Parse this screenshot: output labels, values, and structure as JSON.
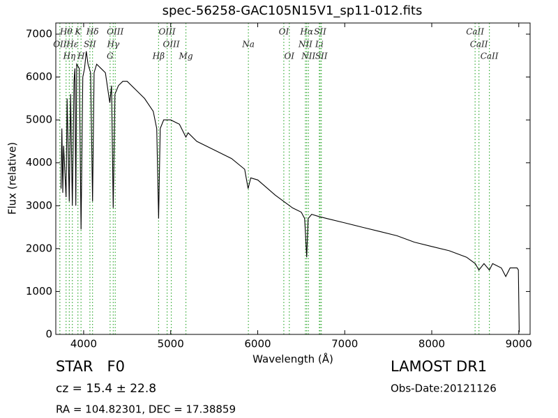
{
  "chart_data": {
    "type": "line",
    "title": "spec-56258-GAC105N15V1_sp11-012.fits",
    "x_label": "Wavelength (Å)",
    "y_label": "Flux (relative)",
    "xlim": [
      3680,
      9130
    ],
    "ylim": [
      0,
      7260
    ],
    "xticks": [
      4000,
      5000,
      6000,
      7000,
      8000,
      9000
    ],
    "yticks": [
      0,
      1000,
      2000,
      3000,
      4000,
      5000,
      6000,
      7000
    ],
    "series": [
      {
        "color": "#000000",
        "x": [
          3740,
          3750,
          3760,
          3770,
          3798,
          3810,
          3835,
          3850,
          3870,
          3889,
          3900,
          3910,
          3920,
          3950,
          3970,
          3990,
          4010,
          4030,
          4050,
          4080,
          4102,
          4120,
          4150,
          4200,
          4250,
          4300,
          4320,
          4340,
          4360,
          4400,
          4450,
          4500,
          4600,
          4700,
          4800,
          4840,
          4861,
          4880,
          4920,
          5000,
          5100,
          5175,
          5200,
          5300,
          5500,
          5700,
          5850,
          5890,
          5920,
          6000,
          6200,
          6400,
          6500,
          6540,
          6563,
          6580,
          6620,
          6700,
          6800,
          7000,
          7200,
          7400,
          7600,
          7800,
          8000,
          8200,
          8400,
          8500,
          8542,
          8600,
          8662,
          8700,
          8800,
          8850,
          8900,
          8980,
          8995,
          9005
        ],
        "values": [
          3400,
          4800,
          3300,
          4400,
          3200,
          5500,
          3100,
          5600,
          3000,
          5900,
          6200,
          3000,
          6300,
          6200,
          2450,
          6000,
          6200,
          6600,
          6300,
          6100,
          3100,
          6100,
          6300,
          6200,
          6100,
          5400,
          5800,
          2950,
          5600,
          5800,
          5900,
          5900,
          5700,
          5500,
          5200,
          4800,
          2700,
          4800,
          5000,
          5000,
          4900,
          4600,
          4700,
          4500,
          4300,
          4100,
          3850,
          3400,
          3650,
          3600,
          3250,
          2950,
          2850,
          2700,
          1800,
          2700,
          2800,
          2750,
          2700,
          2600,
          2500,
          2400,
          2300,
          2150,
          2050,
          1950,
          1800,
          1650,
          1500,
          1650,
          1500,
          1650,
          1550,
          1350,
          1550,
          1550,
          1500,
          50
        ]
      }
    ],
    "line_color": "#33aa33",
    "spectral_lines": {
      "top": [
        {
          "name": "Hθ",
          "wavelength": 3798
        },
        {
          "name": "K",
          "wavelength": 3934
        },
        {
          "name": "Hδ",
          "wavelength": 4102
        },
        {
          "name": "OIII",
          "wavelength": 4363
        },
        {
          "name": "OIII",
          "wavelength": 4959
        },
        {
          "name": "OI",
          "wavelength": 6300
        },
        {
          "name": "Hα",
          "wavelength": 6563
        },
        {
          "name": "SII",
          "wavelength": 6717
        },
        {
          "name": "CaII",
          "wavelength": 8498
        }
      ],
      "middle": [
        {
          "name": "OII",
          "wavelength": 3727
        },
        {
          "name": "Hε",
          "wavelength": 3870
        },
        {
          "name": "SII",
          "wavelength": 4072
        },
        {
          "name": "Hγ",
          "wavelength": 4340
        },
        {
          "name": "OIII",
          "wavelength": 5007
        },
        {
          "name": "Na",
          "wavelength": 5893
        },
        {
          "name": "NII",
          "wavelength": 6548
        },
        {
          "name": "Li",
          "wavelength": 6708
        },
        {
          "name": "CaII",
          "wavelength": 8542
        }
      ],
      "bottom": [
        {
          "name": "Hη",
          "wavelength": 3835
        },
        {
          "name": "H",
          "wavelength": 3970
        },
        {
          "name": "G",
          "wavelength": 4304
        },
        {
          "name": "Hβ",
          "wavelength": 4861
        },
        {
          "name": "Mg",
          "wavelength": 5175
        },
        {
          "name": "OI",
          "wavelength": 6363
        },
        {
          "name": "NII",
          "wavelength": 6583
        },
        {
          "name": "SII",
          "wavelength": 6731
        },
        {
          "name": "CaII",
          "wavelength": 8662
        }
      ]
    },
    "footer": {
      "class": "STAR   F0",
      "cz": "cz = 15.4 ± 22.8",
      "coords": "RA = 104.82301, DEC = 17.38859",
      "survey": "LAMOST DR1",
      "date": "Obs-Date:20121126"
    }
  }
}
